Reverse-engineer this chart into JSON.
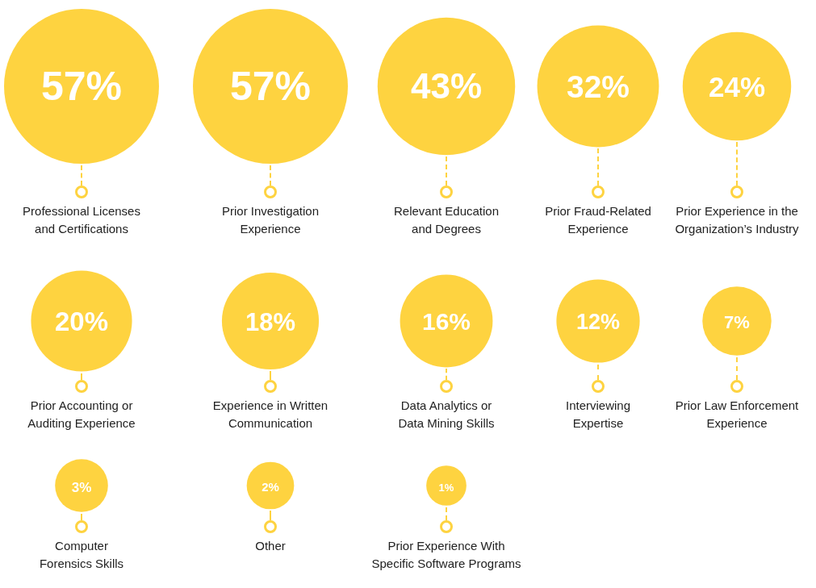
{
  "chart_data": {
    "type": "other",
    "categories": [
      "Professional Licenses\nand Certifications",
      "Prior Investigation\nExperience",
      "Relevant Education\nand Degrees",
      "Prior Fraud-Related\nExperience",
      "Prior Experience in the\nOrganization’s Industry",
      "Prior Accounting or\nAuditing Experience",
      "Experience in Written\nCommunication",
      "Data Analytics or\nData Mining Skills",
      "Interviewing\nExpertise",
      "Prior Law Enforcement\nExperience",
      "Computer\nForensics Skills",
      "Other",
      "Prior Experience With\nSpecific Software Programs"
    ],
    "values": [
      57,
      57,
      43,
      32,
      24,
      20,
      18,
      16,
      12,
      7,
      3,
      2,
      1
    ],
    "value_labels": [
      "57%",
      "57%",
      "43%",
      "32%",
      "24%",
      "20%",
      "18%",
      "16%",
      "12%",
      "7%",
      "3%",
      "2%",
      "1%"
    ],
    "color": "#fed340"
  }
}
